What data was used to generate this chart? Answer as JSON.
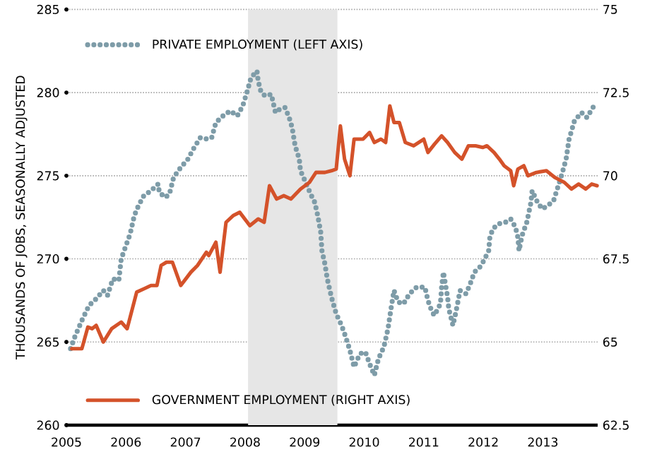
{
  "chart_data": {
    "type": "line",
    "ylabel": "THOUSANDS OF JOBS, SEASONALLY ADJUSTED",
    "xlim": [
      2005,
      2013.92
    ],
    "xticks": [
      2005,
      2006,
      2007,
      2008,
      2009,
      2010,
      2011,
      2012,
      2013
    ],
    "ylim": [
      260,
      285
    ],
    "yticks": [
      260,
      265,
      270,
      275,
      280,
      285
    ],
    "y2lim": [
      62.5,
      75
    ],
    "y2ticks": [
      62.5,
      65,
      67.5,
      70,
      72.5,
      75
    ],
    "grid": "y",
    "legend": "left",
    "bands": [
      {
        "axis": "x",
        "from": 2008.05,
        "to": 2009.55,
        "color": "#e6e6e6"
      }
    ],
    "series": [
      {
        "name": "PRIVATE EMPLOYMENT (LEFT AXIS)",
        "color": "#7e9ca8",
        "line_style": "dotted",
        "x": [
          2005.07,
          2005.14,
          2005.26,
          2005.38,
          2005.5,
          2005.62,
          2005.69,
          2005.78,
          2005.88,
          2005.92,
          2006.0,
          2006.07,
          2006.14,
          2006.21,
          2006.3,
          2006.42,
          2006.54,
          2006.56,
          2006.66,
          2006.73,
          2006.8,
          2006.92,
          2007.04,
          2007.13,
          2007.25,
          2007.37,
          2007.44,
          2007.51,
          2007.63,
          2007.75,
          2007.87,
          2007.96,
          2008.03,
          2008.1,
          2008.2,
          2008.22,
          2008.27,
          2008.34,
          2008.44,
          2008.51,
          2008.58,
          2008.67,
          2008.74,
          2008.79,
          2008.84,
          2008.91,
          2008.93,
          2009.03,
          2009.1,
          2009.17,
          2009.22,
          2009.27,
          2009.29,
          2009.34,
          2009.38,
          2009.45,
          2009.53,
          2009.62,
          2009.69,
          2009.76,
          2009.83,
          2009.93,
          2010.02,
          2010.09,
          2010.17,
          2010.24,
          2010.33,
          2010.4,
          2010.45,
          2010.5,
          2010.57,
          2010.66,
          2010.76,
          2010.88,
          2011.02,
          2011.07,
          2011.14,
          2011.18,
          2011.28,
          2011.3,
          2011.33,
          2011.4,
          2011.42,
          2011.49,
          2011.54,
          2011.61,
          2011.71,
          2011.78,
          2011.85,
          2011.94,
          2012.01,
          2012.09,
          2012.11,
          2012.16,
          2012.25,
          2012.37,
          2012.46,
          2012.54,
          2012.58,
          2012.6,
          2012.65,
          2012.73,
          2012.8,
          2012.82,
          2012.91,
          2012.99,
          2013.08,
          2013.18,
          2013.25,
          2013.32,
          2013.39,
          2013.44,
          2013.53,
          2013.65,
          2013.74,
          2013.79,
          2013.89
        ],
        "values": [
          264.6,
          265.3,
          266.3,
          267.2,
          267.6,
          268.1,
          267.8,
          268.8,
          268.7,
          270.0,
          270.8,
          271.5,
          272.6,
          273.2,
          273.8,
          274.1,
          274.5,
          274.0,
          273.7,
          273.9,
          274.9,
          275.5,
          276.0,
          276.6,
          277.3,
          277.2,
          277.3,
          278.2,
          278.6,
          278.9,
          278.6,
          279.2,
          280.0,
          280.9,
          281.3,
          280.7,
          280.0,
          279.8,
          279.9,
          278.8,
          279.0,
          279.1,
          278.5,
          277.9,
          276.8,
          276.0,
          275.3,
          274.5,
          273.9,
          273.4,
          272.6,
          271.6,
          270.5,
          269.7,
          268.8,
          267.7,
          266.7,
          266.0,
          265.3,
          264.5,
          263.5,
          264.3,
          264.4,
          263.7,
          263.0,
          264.0,
          264.7,
          265.8,
          267.0,
          268.1,
          267.4,
          267.3,
          267.9,
          268.3,
          268.3,
          267.5,
          266.8,
          266.6,
          267.3,
          268.3,
          269.2,
          267.7,
          267.0,
          266.0,
          266.8,
          268.1,
          267.9,
          268.5,
          269.2,
          269.5,
          269.9,
          270.5,
          271.3,
          271.8,
          272.1,
          272.2,
          272.4,
          271.9,
          271.3,
          270.5,
          271.4,
          272.2,
          273.4,
          274.1,
          273.4,
          273.0,
          273.2,
          273.5,
          274.3,
          275.1,
          276.0,
          277.2,
          278.3,
          278.8,
          278.5,
          278.8,
          279.4
        ]
      },
      {
        "name": "GOVERNMENT EMPLOYMENT (RIGHT AXIS)",
        "color": "#d4522a",
        "line_style": "solid",
        "axis": "y2",
        "x": [
          2005.09,
          2005.26,
          2005.36,
          2005.43,
          2005.5,
          2005.62,
          2005.76,
          2005.92,
          2006.02,
          2006.18,
          2006.3,
          2006.42,
          2006.52,
          2006.59,
          2006.68,
          2006.78,
          2006.92,
          2007.09,
          2007.2,
          2007.35,
          2007.39,
          2007.51,
          2007.58,
          2007.68,
          2007.8,
          2007.91,
          2008.08,
          2008.22,
          2008.32,
          2008.41,
          2008.53,
          2008.65,
          2008.77,
          2008.93,
          2009.08,
          2009.19,
          2009.34,
          2009.45,
          2009.53,
          2009.6,
          2009.67,
          2009.76,
          2009.83,
          2009.98,
          2010.09,
          2010.17,
          2010.28,
          2010.36,
          2010.43,
          2010.5,
          2010.59,
          2010.69,
          2010.83,
          2011.0,
          2011.07,
          2011.18,
          2011.3,
          2011.4,
          2011.52,
          2011.64,
          2011.75,
          2011.87,
          2011.99,
          2012.06,
          2012.18,
          2012.27,
          2012.35,
          2012.46,
          2012.51,
          2012.58,
          2012.68,
          2012.75,
          2012.89,
          2013.06,
          2013.2,
          2013.36,
          2013.48,
          2013.6,
          2013.72,
          2013.82,
          2013.91
        ],
        "values": [
          64.8,
          64.8,
          65.45,
          65.4,
          65.5,
          65.0,
          65.4,
          65.6,
          65.4,
          66.5,
          66.6,
          66.7,
          66.7,
          67.3,
          67.4,
          67.4,
          66.7,
          67.1,
          67.3,
          67.7,
          67.6,
          68.0,
          67.1,
          68.6,
          68.8,
          68.9,
          68.5,
          68.7,
          68.6,
          69.7,
          69.3,
          69.4,
          69.3,
          69.6,
          69.8,
          70.1,
          70.1,
          70.15,
          70.2,
          71.5,
          70.5,
          70.0,
          71.1,
          71.1,
          71.3,
          71.0,
          71.1,
          71.0,
          72.1,
          71.6,
          71.6,
          71.0,
          70.9,
          71.1,
          70.7,
          70.95,
          71.2,
          71.0,
          70.7,
          70.5,
          70.9,
          70.9,
          70.85,
          70.9,
          70.7,
          70.5,
          70.3,
          70.15,
          69.7,
          70.2,
          70.3,
          70.0,
          70.1,
          70.15,
          69.95,
          69.8,
          69.6,
          69.75,
          69.6,
          69.75,
          69.7
        ]
      }
    ]
  }
}
